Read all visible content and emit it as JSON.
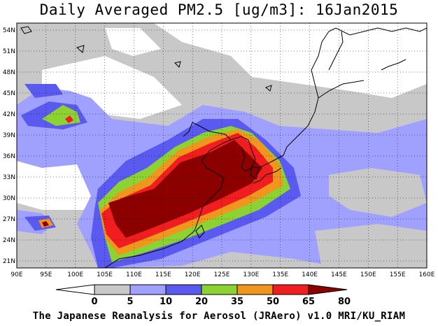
{
  "title": "Daily Averaged PM2.5 [ug/m3]: 16Jan2015",
  "footer": "The Japanese Reanalysis for Aerosol (JRAero) v1.0 MRI/KU_RIAM",
  "map": {
    "lon_range": [
      90,
      160
    ],
    "lat_range": [
      20,
      55
    ],
    "lon_ticks": [
      "90E",
      "95E",
      "100E",
      "105E",
      "110E",
      "115E",
      "120E",
      "125E",
      "130E",
      "135E",
      "140E",
      "145E",
      "150E",
      "155E",
      "160E"
    ],
    "lat_ticks": [
      "21N",
      "24N",
      "27N",
      "30N",
      "33N",
      "36N",
      "39N",
      "42N",
      "45N",
      "48N",
      "51N",
      "54N"
    ],
    "gridlines": true,
    "variable": "PM2.5",
    "units": "ug/m3"
  },
  "colorbar": {
    "labels": [
      "0",
      "5",
      "10",
      "20",
      "35",
      "50",
      "65",
      "80"
    ],
    "colors": [
      "#ffffff",
      "#c8c8c8",
      "#a0a0ff",
      "#5a5af0",
      "#8cd232",
      "#f0961e",
      "#f01e1e",
      "#8c0000"
    ]
  }
}
